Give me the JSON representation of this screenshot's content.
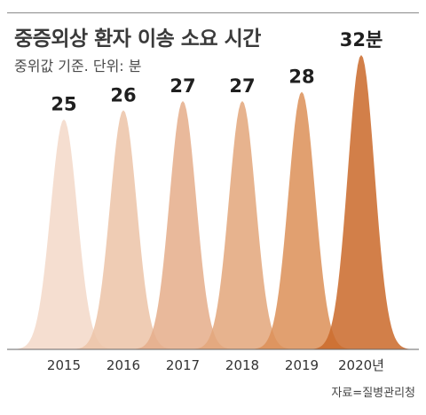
{
  "title": "중증외상 환자 이송 소요 시간",
  "subtitle": "중위값 기준. 단위: 분",
  "source": "자료=질병관리청",
  "chart_data": {
    "type": "area",
    "title": "중증외상 환자 이송 소요 시간",
    "subtitle": "중위값 기준. 단위: 분",
    "categories": [
      "2015",
      "2016",
      "2017",
      "2018",
      "2019",
      "2020년"
    ],
    "values": [
      25,
      26,
      27,
      27,
      28,
      32
    ],
    "value_labels": [
      "25",
      "26",
      "27",
      "27",
      "28",
      "32분"
    ],
    "colors": [
      "#f3d9c8",
      "#ecc4a8",
      "#e5ae8a",
      "#e3a67c",
      "#dc9058",
      "#cb6a2b"
    ],
    "ylim": [
      0,
      32
    ],
    "grid": false,
    "legend": "none"
  }
}
